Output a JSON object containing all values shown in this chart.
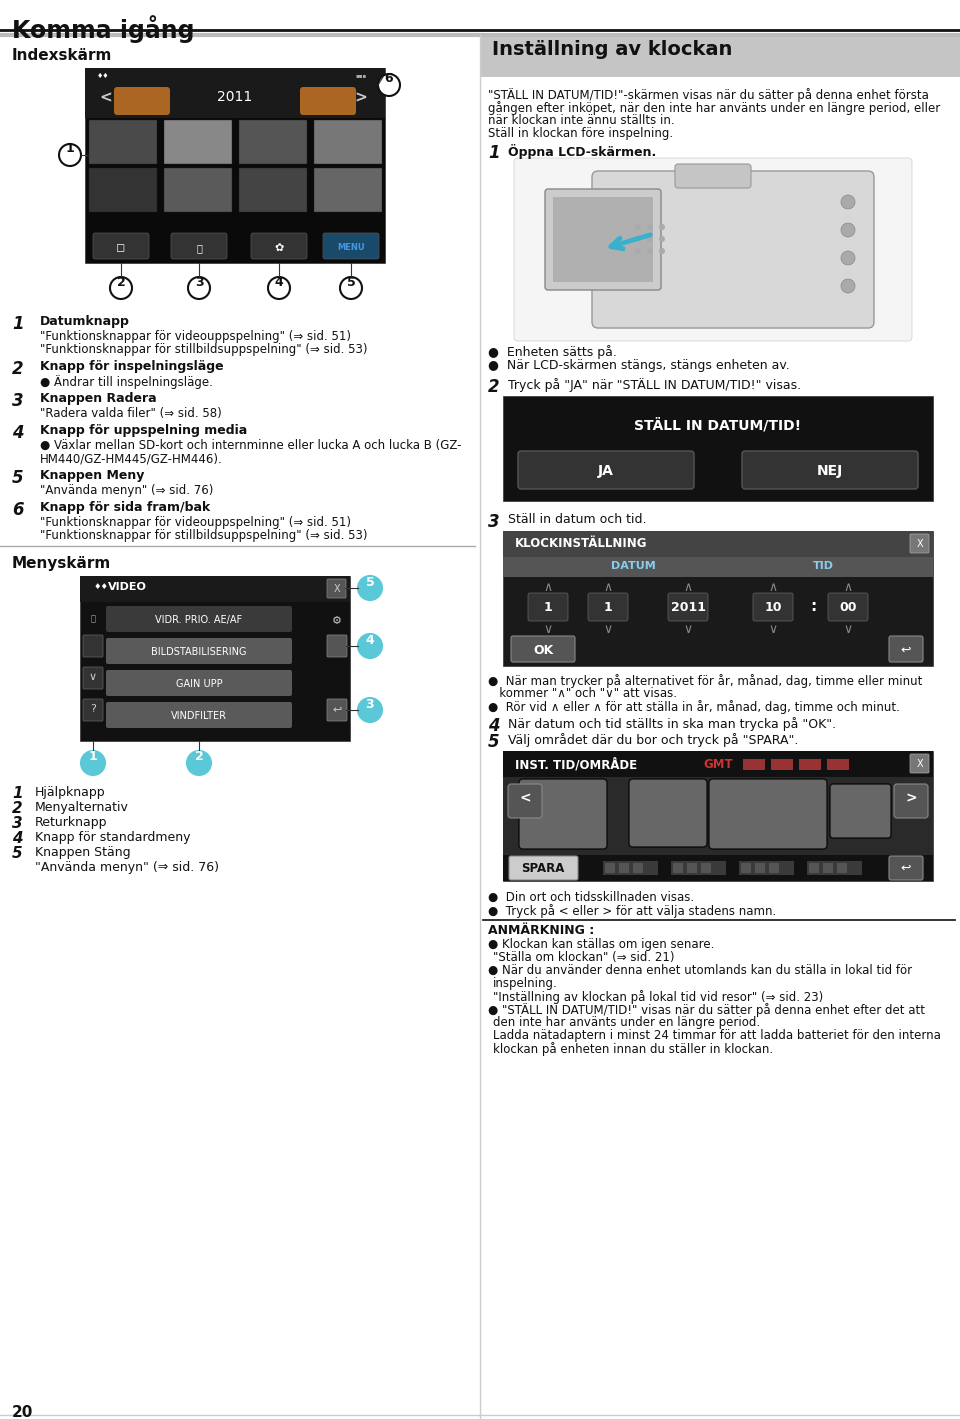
{
  "title": "Komma igång",
  "right_title": "Inställning av klockan",
  "bg_color": "#ffffff",
  "left_section_header": "Indexskärm",
  "right_intro_lines": [
    "\"STÄLL IN DATUM/TID!\"-skärmen visas när du sätter på denna enhet första",
    "gången efter inköpet, när den inte har använts under en längre period, eller",
    "när klockan inte ännu ställts in.",
    "Ställ in klockan före inspelning."
  ],
  "camera_bullets": [
    "Enheten sätts på.",
    "När LCD-skärmen stängs, stängs enheten av."
  ],
  "index_items": [
    [
      "1",
      "Datumknapp",
      [
        "\"Funktionsknappar för videouppspelning\" (⇒ sid. 51)",
        "\"Funktionsknappar för stillbildsuppspelning\" (⇒ sid. 53)"
      ]
    ],
    [
      "2",
      "Knapp för inspelningsläge",
      [
        "● Ändrar till inspelningsläge."
      ]
    ],
    [
      "3",
      "Knappen Radera",
      [
        "\"Radera valda filer\" (⇒ sid. 58)"
      ]
    ],
    [
      "4",
      "Knapp för uppspelning media",
      [
        "● Växlar mellan SD-kort och internminne eller lucka A och lucka B (GZ-",
        "HM440/GZ-HM445/GZ-HM446)."
      ]
    ],
    [
      "5",
      "Knappen Meny",
      [
        "\"Använda menyn\" (⇒ sid. 76)"
      ]
    ],
    [
      "6",
      "Knapp för sida fram/bak",
      [
        "\"Funktionsknappar för videouppspelning\" (⇒ sid. 51)",
        "\"Funktionsknappar för stillbildsuppspelning\" (⇒ sid. 53)"
      ]
    ]
  ],
  "menu_items_list": [
    [
      "1",
      "Hjälpknapp"
    ],
    [
      "2",
      "Menyalternativ"
    ],
    [
      "3",
      "Returknapp"
    ],
    [
      "4",
      "Knapp för standardmeny"
    ],
    [
      "5",
      "Knappen Stäng"
    ]
  ],
  "menu_extra": "\"Använda menyn\" (⇒ sid. 76)",
  "page_number": "20",
  "accent_color": "#5bc8d8",
  "anm_bullets": [
    [
      "●",
      "Klockan kan ställas om igen senare."
    ],
    [
      "",
      "\"Ställa om klockan\" (⇒ sid. 21)"
    ],
    [
      "●",
      "När du använder denna enhet utomlands kan du ställa in lokal tid för"
    ],
    [
      "",
      "inspelning."
    ],
    [
      "",
      "\"Inställning av klockan på lokal tid vid resor\" (⇒ sid. 23)"
    ],
    [
      "●",
      "\"STÄLL IN DATUM/TID!\" visas när du sätter på denna enhet efter det att"
    ],
    [
      "",
      "den inte har använts under en längre period."
    ],
    [
      "",
      "Ladda nätadaptern i minst 24 timmar för att ladda batteriet för den interna"
    ],
    [
      "",
      "klockan på enheten innan du ställer in klockan."
    ]
  ]
}
